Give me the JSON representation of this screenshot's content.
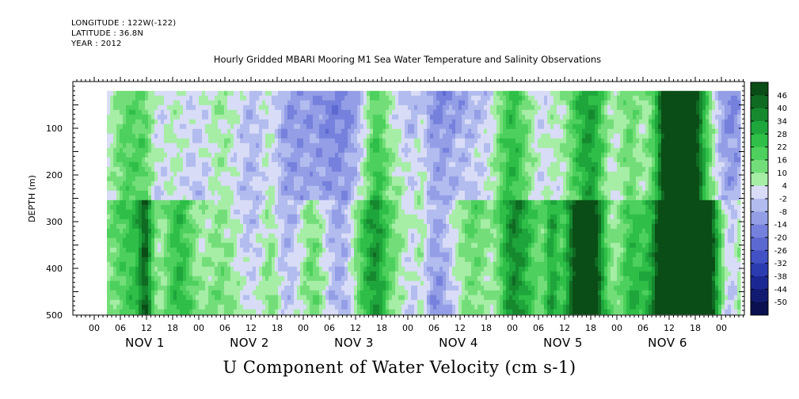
{
  "header": {
    "longitude": "LONGITUDE : 122W(-122)",
    "latitude": "LATITUDE : 36.8N",
    "year": "YEAR : 2012"
  },
  "chart_data": {
    "type": "heatmap",
    "title": "Hourly Gridded MBARI Mooring M1 Sea Water Temperature and Salinity Observations",
    "xlabel": "U Component of Water Velocity (cm s-1)",
    "ylabel": "DEPTH (m)",
    "ylim": [
      500,
      0
    ],
    "yticks": [
      100,
      200,
      300,
      400,
      500
    ],
    "xticks_hours": [
      "00",
      "06",
      "12",
      "18",
      "00",
      "06",
      "12",
      "18",
      "00",
      "06",
      "12",
      "18",
      "00",
      "06",
      "12",
      "18",
      "00",
      "06",
      "12",
      "18",
      "00",
      "06",
      "12",
      "18",
      "00"
    ],
    "days": [
      "NOV 1",
      "NOV 2",
      "NOV 3",
      "NOV 4",
      "NOV 5",
      "NOV 6"
    ],
    "colorbar": {
      "levels": [
        "46",
        "40",
        "34",
        "28",
        "22",
        "16",
        "10",
        "4",
        "-2",
        "-8",
        "-14",
        "-20",
        "-26",
        "-32",
        "-38",
        "-44",
        "-50"
      ],
      "colors": [
        "#0b4d16",
        "#0f6a22",
        "#16892f",
        "#1ea53b",
        "#2fbf48",
        "#4dd05d",
        "#73de79",
        "#a6eda6",
        "#d8dcf6",
        "#b3bcef",
        "#939ee6",
        "#7581dc",
        "#5c69d1",
        "#4252c4",
        "#2b3bb0",
        "#1b2893",
        "#101a70",
        "#0a1050"
      ]
    },
    "field_pattern": "mostly weak negative (light-blue) flow with vertical bands of positive (green) flow, strongest in the lower water column",
    "nodata_note": ""
  }
}
